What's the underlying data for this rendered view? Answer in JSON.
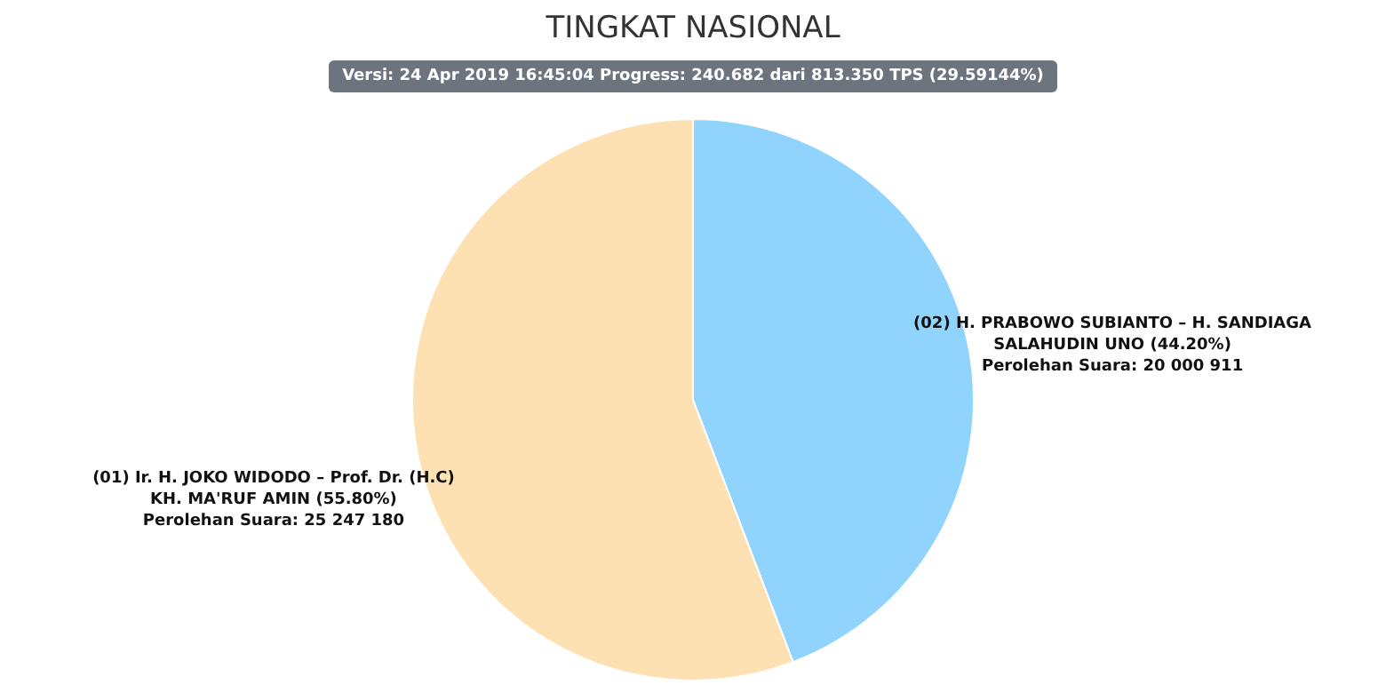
{
  "chart_data": {
    "type": "pie",
    "title": "TINGKAT NASIONAL",
    "subtitle": "Versi: 24 Apr 2019 16:45:04 Progress: 240.682 dari 813.350 TPS (29.59144%)",
    "categories": [
      "(02) H. PRABOWO SUBIANTO – H. SANDIAGA SALAHUDIN UNO (44.20%)",
      "(01) Ir. H. JOKO WIDODO – Prof. Dr. (H.C) KH. MA'RUF AMIN (55.80%)"
    ],
    "values": [
      20000911,
      25247180
    ],
    "colors": [
      "#90d4fd",
      "#fee1b2"
    ],
    "value_labels": [
      "Perolehan Suara: 20 000 911",
      "Perolehan Suara: 25 247 180"
    ]
  }
}
